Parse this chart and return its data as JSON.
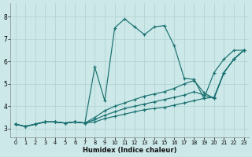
{
  "xlabel": "Humidex (Indice chaleur)",
  "xlim": [
    -0.5,
    23.5
  ],
  "ylim": [
    2.6,
    8.6
  ],
  "xticks": [
    0,
    1,
    2,
    3,
    4,
    5,
    6,
    7,
    8,
    9,
    10,
    11,
    12,
    13,
    14,
    15,
    16,
    17,
    18,
    19,
    20,
    21,
    22,
    23
  ],
  "yticks": [
    3,
    4,
    5,
    6,
    7,
    8
  ],
  "background_color": "#cce8e8",
  "grid_color": "#b0d0d0",
  "line_color": "#1a7070",
  "curves": [
    {
      "x": [
        0,
        1,
        2,
        3,
        4,
        5,
        6,
        7,
        8,
        9,
        10,
        11,
        12,
        13,
        14,
        15,
        16,
        17,
        18,
        19,
        20,
        21,
        22,
        23
      ],
      "y": [
        3.2,
        3.1,
        3.2,
        3.3,
        3.3,
        3.25,
        3.3,
        3.25,
        5.75,
        4.25,
        7.5,
        7.9,
        7.55,
        7.2,
        7.55,
        7.6,
        6.7,
        5.25,
        5.2,
        4.35,
        5.5,
        6.1,
        6.5,
        6.5
      ]
    },
    {
      "x": [
        0,
        1,
        2,
        3,
        4,
        5,
        6,
        7,
        8,
        9,
        10,
        11,
        12,
        13,
        14,
        15,
        16,
        17,
        18,
        19,
        20,
        21,
        22,
        23
      ],
      "y": [
        3.2,
        3.1,
        3.2,
        3.3,
        3.3,
        3.25,
        3.3,
        3.25,
        3.5,
        3.8,
        4.0,
        4.15,
        4.3,
        4.45,
        4.55,
        4.65,
        4.8,
        5.0,
        5.15,
        4.6,
        4.35,
        5.5,
        6.1,
        6.5
      ]
    },
    {
      "x": [
        0,
        1,
        2,
        3,
        4,
        5,
        6,
        7,
        8,
        9,
        10,
        11,
        12,
        13,
        14,
        15,
        16,
        17,
        18,
        19,
        20,
        21,
        22,
        23
      ],
      "y": [
        3.2,
        3.1,
        3.2,
        3.3,
        3.3,
        3.25,
        3.3,
        3.25,
        3.4,
        3.6,
        3.75,
        3.9,
        4.0,
        4.1,
        4.2,
        4.3,
        4.4,
        4.5,
        4.65,
        4.5,
        4.35,
        5.5,
        6.1,
        6.5
      ]
    },
    {
      "x": [
        0,
        1,
        2,
        3,
        4,
        5,
        6,
        7,
        8,
        9,
        10,
        11,
        12,
        13,
        14,
        15,
        16,
        17,
        18,
        19,
        20,
        21,
        22,
        23
      ],
      "y": [
        3.2,
        3.1,
        3.2,
        3.3,
        3.3,
        3.25,
        3.3,
        3.25,
        3.3,
        3.45,
        3.55,
        3.65,
        3.75,
        3.85,
        3.9,
        3.95,
        4.05,
        4.15,
        4.25,
        4.35,
        4.4,
        5.5,
        6.1,
        6.5
      ]
    }
  ]
}
